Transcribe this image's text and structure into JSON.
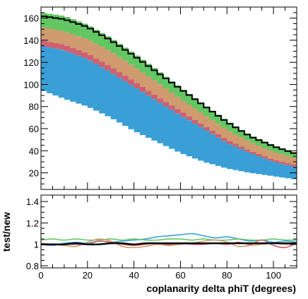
{
  "chart_data": [
    {
      "type": "area",
      "panel": "main",
      "stacked": true,
      "xlim": [
        0,
        110
      ],
      "ylim": [
        5,
        170
      ],
      "x_bin_width": 2.5,
      "y_ticks": [
        20,
        40,
        60,
        80,
        100,
        120,
        140,
        160
      ],
      "x_ticks": [
        0,
        20,
        40,
        60,
        80,
        100
      ],
      "band_edges": {
        "x": [
          0,
          10,
          20,
          30,
          40,
          50,
          60,
          70,
          80,
          90,
          100,
          110
        ],
        "blue_low": [
          95,
          87,
          80,
          70,
          58,
          48,
          38,
          30,
          24,
          20,
          17,
          14
        ],
        "blue_high": [
          135,
          131,
          123,
          111,
          98,
          85,
          72,
          60,
          47,
          38,
          30,
          25
        ],
        "red_high": [
          140,
          136,
          128,
          116,
          103,
          89,
          76,
          63,
          50,
          40,
          32,
          27
        ],
        "orange_high": [
          152,
          148,
          141,
          130,
          116,
          102,
          87,
          73,
          59,
          48,
          39,
          33
        ],
        "green_high": [
          165,
          162,
          154,
          142,
          128,
          113,
          97,
          82,
          67,
          54,
          45,
          38
        ],
        "black": [
          162,
          159,
          152,
          140,
          126,
          111,
          96,
          81,
          66,
          53,
          44,
          37
        ]
      },
      "colors": {
        "blue": "#3a9fd6",
        "red": "#d06070",
        "orange": "#cf9b6f",
        "green": "#62c762",
        "black": "#000000"
      }
    },
    {
      "type": "line",
      "panel": "ratio",
      "ylabel": "test/new",
      "xlabel": "coplanarity delta phiT (degrees)",
      "xlim": [
        0,
        110
      ],
      "ylim": [
        0.78,
        1.46
      ],
      "y_ticks": [
        0.8,
        1,
        1.2,
        1.4
      ],
      "x_ticks": [
        0,
        20,
        40,
        60,
        80,
        100
      ],
      "x": [
        0,
        5,
        10,
        15,
        20,
        25,
        30,
        35,
        40,
        45,
        50,
        55,
        60,
        65,
        70,
        75,
        80,
        85,
        90,
        95,
        100,
        105,
        110
      ],
      "series": [
        {
          "color": "#3a9fd6",
          "values": [
            1.0,
            0.99,
            1.01,
            1.02,
            1.01,
            1.03,
            1.02,
            1.03,
            1.04,
            1.05,
            1.07,
            1.08,
            1.09,
            1.1,
            1.08,
            1.06,
            1.07,
            1.05,
            1.03,
            1.04,
            1.02,
            1.03,
            1.02
          ]
        },
        {
          "color": "#62c762",
          "values": [
            1.04,
            1.05,
            1.04,
            1.05,
            1.04,
            1.04,
            1.05,
            1.04,
            1.05,
            1.04,
            1.04,
            1.05,
            1.05,
            1.04,
            1.05,
            1.04,
            1.04,
            1.05,
            1.04,
            1.04,
            1.05,
            1.04,
            1.04
          ]
        },
        {
          "color": "#cf9b6f",
          "values": [
            1.01,
            1.0,
            0.99,
            0.98,
            1.02,
            1.05,
            1.03,
            0.98,
            0.97,
            0.98,
            1.0,
            0.99,
            1.0,
            1.01,
            1.03,
            1.04,
            1.02,
            0.98,
            0.99,
            1.0,
            1.01,
            1.0,
            1.0
          ]
        },
        {
          "color": "#d06070",
          "values": [
            1.0,
            1.0,
            1.0,
            1.0,
            1.0,
            1.03,
            1.02,
            1.0,
            0.99,
            1.0,
            1.01,
            1.0,
            1.01,
            1.0,
            1.0,
            1.01,
            1.0,
            1.02,
            1.0,
            1.04,
            0.99,
            0.97,
            1.01
          ]
        },
        {
          "color": "#000000",
          "values": [
            1.0,
            1.0,
            1.0,
            1.01,
            1.0,
            1.0,
            1.01,
            1.01,
            1.0,
            1.01,
            1.01,
            1.01,
            1.01,
            1.01,
            1.01,
            1.01,
            1.01,
            1.01,
            1.01,
            1.01,
            1.01,
            1.01,
            1.01
          ]
        }
      ]
    }
  ]
}
